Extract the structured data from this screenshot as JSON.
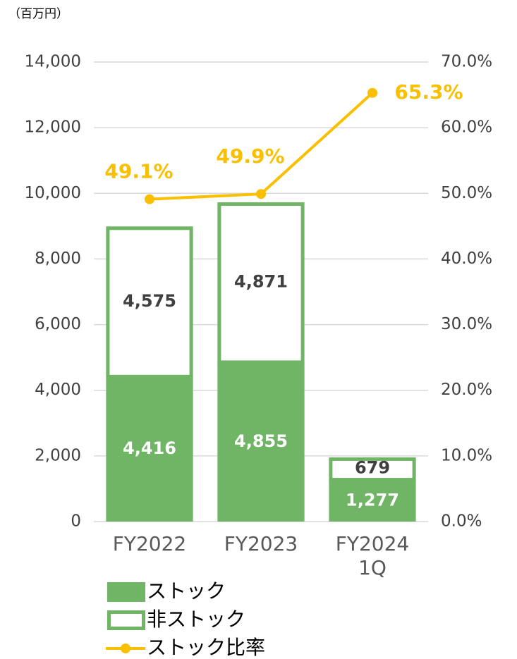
{
  "chart_data": {
    "type": "bar",
    "stacked": true,
    "unit_label": "（百万円）",
    "categories": [
      "FY2022",
      "FY2023",
      "FY2024\n1Q"
    ],
    "series": [
      {
        "name": "ストック",
        "color": "#70b565",
        "values": [
          4416,
          4855,
          1277
        ],
        "value_labels": [
          "4,416",
          "4,855",
          "1,277"
        ]
      },
      {
        "name": "非ストック",
        "color": "#70b565",
        "values": [
          4575,
          4871,
          679
        ],
        "value_labels": [
          "4,575",
          "4,871",
          "679"
        ]
      },
      {
        "name": "ストック比率",
        "type": "line",
        "axis": "y2",
        "color": "#f9bf00",
        "values": [
          49.1,
          49.9,
          65.3
        ],
        "value_labels": [
          "49.1%",
          "49.9%",
          "65.3%"
        ]
      }
    ],
    "ylim": [
      0,
      14000
    ],
    "yticks": [
      0,
      {
        "value": 2000,
        "label": "2,000"
      },
      {
        "value": 4000,
        "label": "4,000"
      },
      {
        "value": 6000,
        "label": "6,000"
      },
      {
        "value": 8000,
        "label": "8,000"
      },
      {
        "value": 10000,
        "label": "10,000"
      },
      {
        "value": 12000,
        "label": "12,000"
      },
      {
        "value": 14000,
        "label": "14,000"
      }
    ],
    "y2lim": [
      0,
      70
    ],
    "y2ticks": [
      {
        "value": 0,
        "label": "0.0%"
      },
      {
        "value": 10,
        "label": "10.0%"
      },
      {
        "value": 20,
        "label": "20.0%"
      },
      {
        "value": 30,
        "label": "30.0%"
      },
      {
        "value": 40,
        "label": "40.0%"
      },
      {
        "value": 50,
        "label": "50.0%"
      },
      {
        "value": 60,
        "label": "60.0%"
      },
      {
        "value": 70,
        "label": "70.0%"
      }
    ],
    "grid": true
  }
}
